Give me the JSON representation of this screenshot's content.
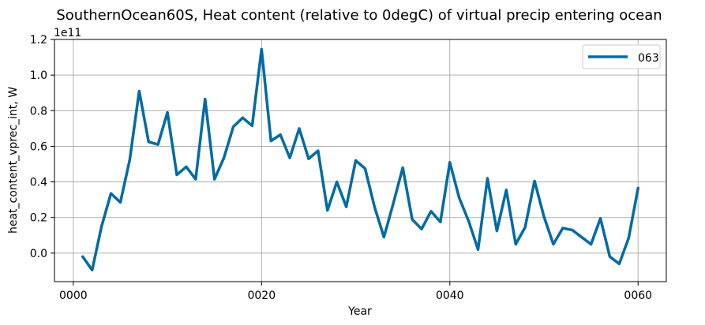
{
  "chart_data": {
    "type": "line",
    "title": "SouthernOcean60S, Heat content (relative to 0degC) of virtual precip entering ocean",
    "xlabel": "Year",
    "ylabel": "heat_content_vprec_int, W",
    "y_offset_label": "1e11",
    "xlim": [
      -2,
      63
    ],
    "ylim": [
      -0.16,
      1.2
    ],
    "x_ticks": [
      0,
      20,
      40,
      60
    ],
    "x_tick_labels": [
      "0000",
      "0020",
      "0040",
      "0060"
    ],
    "y_ticks": [
      0.0,
      0.2,
      0.4,
      0.6,
      0.8,
      1.0,
      1.2
    ],
    "y_tick_labels": [
      "0.0",
      "0.2",
      "0.4",
      "0.6",
      "0.8",
      "1.0",
      "1.2"
    ],
    "grid": true,
    "legend_position": "top-right",
    "series": [
      {
        "name": "063",
        "color": "#006ba4",
        "x": [
          1,
          2,
          3,
          4,
          5,
          6,
          7,
          8,
          9,
          10,
          11,
          12,
          13,
          14,
          15,
          16,
          17,
          18,
          19,
          20,
          21,
          22,
          23,
          24,
          25,
          26,
          27,
          28,
          29,
          30,
          31,
          32,
          33,
          34,
          35,
          36,
          37,
          38,
          39,
          40,
          41,
          42,
          43,
          44,
          45,
          46,
          47,
          48,
          49,
          50,
          51,
          52,
          53,
          54,
          55,
          56,
          57,
          58,
          59,
          60
        ],
        "values": [
          -0.02,
          -0.095,
          0.15,
          0.335,
          0.285,
          0.525,
          0.91,
          0.625,
          0.61,
          0.79,
          0.44,
          0.485,
          0.415,
          0.865,
          0.415,
          0.535,
          0.71,
          0.76,
          0.715,
          1.145,
          0.63,
          0.665,
          0.535,
          0.7,
          0.53,
          0.575,
          0.24,
          0.4,
          0.26,
          0.52,
          0.475,
          0.26,
          0.09,
          0.28,
          0.48,
          0.19,
          0.135,
          0.235,
          0.175,
          0.51,
          0.31,
          0.18,
          0.02,
          0.42,
          0.125,
          0.355,
          0.05,
          0.145,
          0.405,
          0.205,
          0.05,
          0.14,
          0.13,
          0.09,
          0.05,
          0.195,
          -0.02,
          -0.06,
          0.085,
          0.365
        ]
      }
    ]
  }
}
